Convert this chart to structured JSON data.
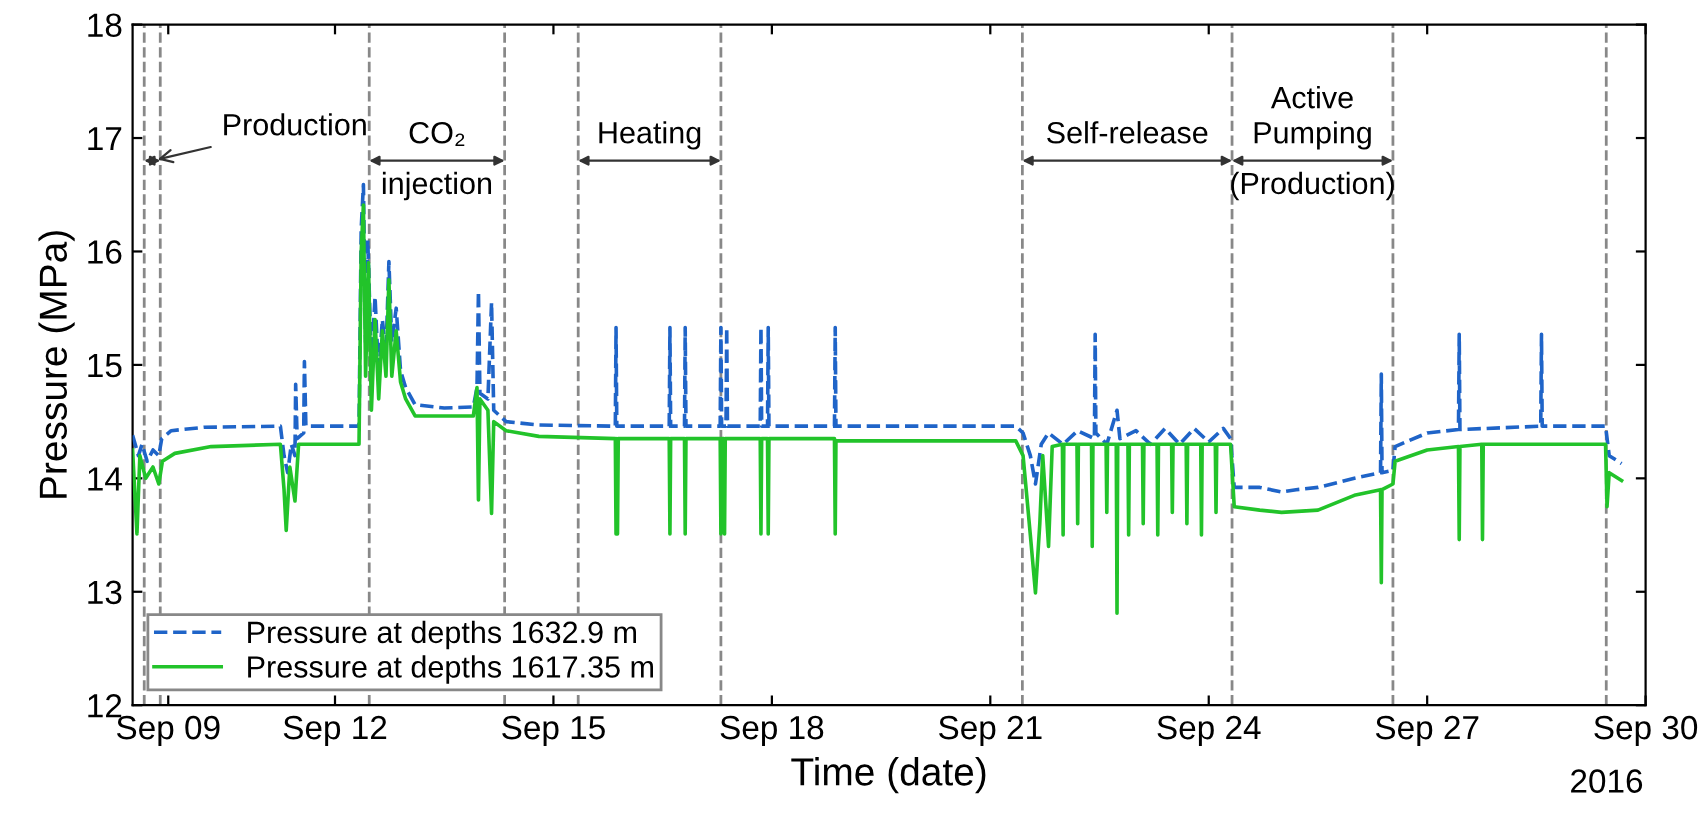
{
  "chart_data": {
    "type": "line",
    "xlabel": "Time (date)",
    "ylabel": "Pressure (MPa)",
    "xlim": [
      "2016-09-09T05:17",
      "2016-09-30T00:00"
    ],
    "ylim": [
      12,
      18
    ],
    "xticks": [
      {
        "value": "2016-09-09T17:02",
        "label": "Sep 09"
      },
      {
        "value": "2016-09-12",
        "label": "Sep 12"
      },
      {
        "value": "2016-09-15",
        "label": "Sep 15"
      },
      {
        "value": "2016-09-18",
        "label": "Sep 18"
      },
      {
        "value": "2016-09-21",
        "label": "Sep 21"
      },
      {
        "value": "2016-09-24",
        "label": "Sep 24"
      },
      {
        "value": "2016-09-27",
        "label": "Sep 27"
      },
      {
        "value": "2016-09-30",
        "label": "Sep 30"
      }
    ],
    "yticks": [
      12,
      13,
      14,
      15,
      16,
      17,
      18
    ],
    "grid": false,
    "legend": "bottom left",
    "marker": "none",
    "series": [
      {
        "name": "Pressure at depths 1632.9 m",
        "color": "#1f64c8",
        "line_style": "dashed",
        "x": [
          "2016-09-09T05:17",
          "2016-09-09T07:12",
          "2016-09-09T08:24",
          "2016-09-09T10:05",
          "2016-09-09T12:00",
          "2016-09-09T13:55",
          "2016-09-09T14:53",
          "2016-09-09T18:00",
          "2016-09-10T04:48",
          "2016-09-11T06:00",
          "2016-09-11T07:12",
          "2016-09-11T08:24",
          "2016-09-11T09:36",
          "2016-09-11T10:48",
          "2016-09-11T11:02",
          "2016-09-11T11:31",
          "2016-09-11T13:41",
          "2016-09-11T13:55",
          "2016-09-11T14:24",
          "2016-09-12T07:55",
          "2016-09-12T08:38",
          "2016-09-12T09:22",
          "2016-09-12T10:05",
          "2016-09-12T10:48",
          "2016-09-12T12:00",
          "2016-09-12T13:12",
          "2016-09-12T14:24",
          "2016-09-12T15:36",
          "2016-09-12T16:48",
          "2016-09-12T17:46",
          "2016-09-12T18:43",
          "2016-09-12T20:10",
          "2016-09-12T21:36",
          "2016-09-12T23:17",
          "2016-09-13T02:24",
          "2016-09-13T12:00",
          "2016-09-13T21:36",
          "2016-09-13T22:48",
          "2016-09-13T23:17",
          "2016-09-13T23:46",
          "2016-09-14T02:24",
          "2016-09-14T03:36",
          "2016-09-14T04:19",
          "2016-09-14T08:24",
          "2016-09-14T19:12",
          "2016-09-15T20:24",
          "2016-09-15T20:38",
          "2016-09-15T20:53",
          "2016-09-16T14:10",
          "2016-09-16T14:24",
          "2016-09-16T14:38",
          "2016-09-16T19:12",
          "2016-09-16T19:26",
          "2016-09-16T19:41",
          "2016-09-17T06:58",
          "2016-09-17T07:12",
          "2016-09-17T07:26",
          "2016-09-17T08:53",
          "2016-09-17T09:07",
          "2016-09-17T09:22",
          "2016-09-17T20:10",
          "2016-09-17T20:24",
          "2016-09-17T20:38",
          "2016-09-17T22:34",
          "2016-09-17T22:48",
          "2016-09-17T23:02",
          "2016-09-18T20:38",
          "2016-09-18T20:53",
          "2016-09-18T21:07",
          "2016-09-21T08:24",
          "2016-09-21T10:48",
          "2016-09-21T13:12",
          "2016-09-21T14:53",
          "2016-09-21T16:48",
          "2016-09-21T19:12",
          "2016-09-22T00:00",
          "2016-09-22T04:48",
          "2016-09-22T10:19",
          "2016-09-22T10:34",
          "2016-09-22T10:48",
          "2016-09-22T14:24",
          "2016-09-22T17:46",
          "2016-09-22T18:43",
          "2016-09-23T00:00",
          "2016-09-23T04:48",
          "2016-09-23T09:36",
          "2016-09-23T14:24",
          "2016-09-23T19:12",
          "2016-09-24T00:00",
          "2016-09-24T04:48",
          "2016-09-24T07:12",
          "2016-09-24T08:24",
          "2016-09-24T16:48",
          "2016-09-25T00:00",
          "2016-09-25T04:48",
          "2016-09-25T12:00",
          "2016-09-26T00:00",
          "2016-09-26T08:38",
          "2016-09-26T08:53",
          "2016-09-26T09:07",
          "2016-09-26T12:43",
          "2016-09-26T13:26",
          "2016-09-27T00:00",
          "2016-09-27T10:19",
          "2016-09-27T10:34",
          "2016-09-27T10:48",
          "2016-09-28T13:26",
          "2016-09-28T13:41",
          "2016-09-28T13:55",
          "2016-09-29T10:48",
          "2016-09-29T12:00",
          "2016-09-29T16:05"
        ],
        "values": [
          14.38,
          14.2,
          14.3,
          14.15,
          14.25,
          14.2,
          14.35,
          14.42,
          14.45,
          14.46,
          14.2,
          14.05,
          14.3,
          14.2,
          14.83,
          14.35,
          14.4,
          15.03,
          14.46,
          14.46,
          16.2,
          16.59,
          15.2,
          16.1,
          15.0,
          15.6,
          14.9,
          15.4,
          15.1,
          15.91,
          15.2,
          15.5,
          14.95,
          14.8,
          14.65,
          14.62,
          14.63,
          14.8,
          15.65,
          14.75,
          14.7,
          15.55,
          14.6,
          14.5,
          14.47,
          14.46,
          15.33,
          14.46,
          14.46,
          15.33,
          14.46,
          14.46,
          15.33,
          14.46,
          14.46,
          15.33,
          14.46,
          14.46,
          15.33,
          14.46,
          14.46,
          15.33,
          14.46,
          14.46,
          15.33,
          14.46,
          14.46,
          15.33,
          14.46,
          14.46,
          14.4,
          14.2,
          13.95,
          14.3,
          14.4,
          14.3,
          14.42,
          14.35,
          15.27,
          14.4,
          14.3,
          14.6,
          14.35,
          14.42,
          14.3,
          14.44,
          14.3,
          14.44,
          14.32,
          14.44,
          14.35,
          13.92,
          13.92,
          13.88,
          13.9,
          13.92,
          14.0,
          14.05,
          14.92,
          14.05,
          14.07,
          14.28,
          14.4,
          14.43,
          15.27,
          14.43,
          14.46,
          15.27,
          14.46,
          14.46,
          14.2,
          14.13
        ]
      },
      {
        "name": "Pressure at depths 1617.35 m",
        "color": "#22c32a",
        "line_style": "solid",
        "x": [
          "2016-09-09T05:17",
          "2016-09-09T06:43",
          "2016-09-09T07:41",
          "2016-09-09T09:36",
          "2016-09-09T12:00",
          "2016-09-09T13:55",
          "2016-09-09T15:07",
          "2016-09-09T19:12",
          "2016-09-10T07:12",
          "2016-09-11T06:00",
          "2016-09-11T07:12",
          "2016-09-11T07:55",
          "2016-09-11T09:07",
          "2016-09-11T10:48",
          "2016-09-11T12:00",
          "2016-09-12T07:55",
          "2016-09-12T08:38",
          "2016-09-12T09:22",
          "2016-09-12T10:05",
          "2016-09-12T11:02",
          "2016-09-12T12:00",
          "2016-09-12T13:12",
          "2016-09-12T14:24",
          "2016-09-12T15:36",
          "2016-09-12T16:48",
          "2016-09-12T17:46",
          "2016-09-12T18:43",
          "2016-09-12T20:10",
          "2016-09-12T21:36",
          "2016-09-12T23:17",
          "2016-09-13T02:24",
          "2016-09-13T21:36",
          "2016-09-13T22:48",
          "2016-09-13T23:17",
          "2016-09-13T23:46",
          "2016-09-14T02:24",
          "2016-09-14T03:36",
          "2016-09-14T04:19",
          "2016-09-14T08:24",
          "2016-09-14T19:12",
          "2016-09-15T20:24",
          "2016-09-15T20:38",
          "2016-09-15T20:53",
          "2016-09-15T21:07",
          "2016-09-15T21:22",
          "2016-09-16T14:10",
          "2016-09-16T14:24",
          "2016-09-16T14:38",
          "2016-09-16T19:12",
          "2016-09-16T19:26",
          "2016-09-16T19:41",
          "2016-09-17T06:58",
          "2016-09-17T07:12",
          "2016-09-17T07:26",
          "2016-09-17T08:10",
          "2016-09-17T08:24",
          "2016-09-17T08:38",
          "2016-09-17T20:10",
          "2016-09-17T20:24",
          "2016-09-17T20:38",
          "2016-09-17T22:34",
          "2016-09-17T22:48",
          "2016-09-17T23:02",
          "2016-09-18T20:38",
          "2016-09-18T20:53",
          "2016-09-18T21:07",
          "2016-09-21T08:24",
          "2016-09-21T10:48",
          "2016-09-21T13:12",
          "2016-09-21T14:53",
          "2016-09-21T16:19",
          "2016-09-21T17:17",
          "2016-09-21T19:12",
          "2016-09-21T20:24",
          "2016-09-21T23:46",
          "2016-09-22T00:00",
          "2016-09-22T00:14",
          "2016-09-22T04:34",
          "2016-09-22T04:48",
          "2016-09-22T05:02",
          "2016-09-22T09:22",
          "2016-09-22T09:36",
          "2016-09-22T09:50",
          "2016-09-22T14:10",
          "2016-09-22T14:24",
          "2016-09-22T14:38",
          "2016-09-22T17:31",
          "2016-09-22T17:46",
          "2016-09-22T18:00",
          "2016-09-22T21:22",
          "2016-09-22T21:36",
          "2016-09-22T21:50",
          "2016-09-23T02:10",
          "2016-09-23T02:24",
          "2016-09-23T02:38",
          "2016-09-23T06:58",
          "2016-09-23T07:12",
          "2016-09-23T07:26",
          "2016-09-23T11:46",
          "2016-09-23T12:00",
          "2016-09-23T12:14",
          "2016-09-23T16:34",
          "2016-09-23T16:48",
          "2016-09-23T17:02",
          "2016-09-23T21:22",
          "2016-09-23T21:36",
          "2016-09-23T21:50",
          "2016-09-24T02:10",
          "2016-09-24T02:24",
          "2016-09-24T02:38",
          "2016-09-24T07:12",
          "2016-09-24T08:24",
          "2016-09-24T16:48",
          "2016-09-25T00:00",
          "2016-09-25T12:00",
          "2016-09-26T00:00",
          "2016-09-26T08:38",
          "2016-09-26T08:53",
          "2016-09-26T09:07",
          "2016-09-26T12:43",
          "2016-09-26T13:26",
          "2016-09-27T00:00",
          "2016-09-27T10:19",
          "2016-09-27T10:34",
          "2016-09-27T10:48",
          "2016-09-27T18:00",
          "2016-09-27T18:14",
          "2016-09-27T18:29",
          "2016-09-29T10:48",
          "2016-09-29T11:17",
          "2016-09-29T12:00",
          "2016-09-29T16:05"
        ],
        "values": [
          14.25,
          13.51,
          14.2,
          14.0,
          14.1,
          13.95,
          14.15,
          14.22,
          14.28,
          14.3,
          13.9,
          13.54,
          14.1,
          13.8,
          14.3,
          14.3,
          16.0,
          16.41,
          14.9,
          15.9,
          14.6,
          15.4,
          14.7,
          15.3,
          14.9,
          15.75,
          14.9,
          15.3,
          14.85,
          14.7,
          14.55,
          14.55,
          14.8,
          13.81,
          14.7,
          14.6,
          13.69,
          14.5,
          14.42,
          14.37,
          14.35,
          13.51,
          14.35,
          13.51,
          14.35,
          14.35,
          13.51,
          14.35,
          14.35,
          13.51,
          14.35,
          14.35,
          13.51,
          14.35,
          14.35,
          13.51,
          14.35,
          14.35,
          13.51,
          14.35,
          14.35,
          13.51,
          14.35,
          14.35,
          13.51,
          14.33,
          14.33,
          14.2,
          13.5,
          12.99,
          13.6,
          14.2,
          13.4,
          14.28,
          14.3,
          13.5,
          14.3,
          14.3,
          13.6,
          14.3,
          14.3,
          13.4,
          14.3,
          14.3,
          13.7,
          14.3,
          14.3,
          12.81,
          14.3,
          14.3,
          13.5,
          14.3,
          14.3,
          13.6,
          14.3,
          14.3,
          13.5,
          14.3,
          14.3,
          13.7,
          14.3,
          14.3,
          13.6,
          14.3,
          14.3,
          13.5,
          14.3,
          14.3,
          13.7,
          14.3,
          14.3,
          13.75,
          13.72,
          13.7,
          13.72,
          13.85,
          13.9,
          13.08,
          13.9,
          13.95,
          14.15,
          14.25,
          14.28,
          13.46,
          14.28,
          14.3,
          13.46,
          14.3,
          14.3,
          13.75,
          14.05,
          13.98
        ]
      }
    ],
    "ref_lines": [
      {
        "axis": "x",
        "value": "2016-09-09T09:07",
        "color": "#888888",
        "line_style": "dashed"
      },
      {
        "axis": "x",
        "value": "2016-09-09T14:24",
        "color": "#888888",
        "line_style": "dashed"
      },
      {
        "axis": "x",
        "value": "2016-09-12T11:17",
        "color": "#888888",
        "line_style": "dashed"
      },
      {
        "axis": "x",
        "value": "2016-09-14T07:55",
        "color": "#888888",
        "line_style": "dashed"
      },
      {
        "axis": "x",
        "value": "2016-09-15T08:10",
        "color": "#888888",
        "line_style": "dashed"
      },
      {
        "axis": "x",
        "value": "2016-09-17T07:12",
        "color": "#888888",
        "line_style": "dashed"
      },
      {
        "axis": "x",
        "value": "2016-09-21T10:34",
        "color": "#888888",
        "line_style": "dashed"
      },
      {
        "axis": "x",
        "value": "2016-09-24T07:41",
        "color": "#888888",
        "line_style": "dashed"
      },
      {
        "axis": "x",
        "value": "2016-09-26T12:43",
        "color": "#888888",
        "line_style": "dashed"
      },
      {
        "axis": "x",
        "value": "2016-09-29T11:02",
        "color": "#888888",
        "line_style": "dashed"
      }
    ],
    "annotations": [
      {
        "text": "Production",
        "x": "2016-09-09T09:07",
        "y": 16.8
      },
      {
        "text": "CO₂\ninjection",
        "x": "2016-09-12T11:17",
        "y": 16.8
      },
      {
        "text": "Heating",
        "x": "2016-09-15T08:10",
        "y": 16.8
      },
      {
        "text": "Self-release",
        "x": "2016-09-21T10:34",
        "y": 16.8
      },
      {
        "text": "Active\nPumping\n(Production)",
        "x": "2016-09-24T07:41",
        "y": 16.8
      },
      "2016"
    ]
  }
}
